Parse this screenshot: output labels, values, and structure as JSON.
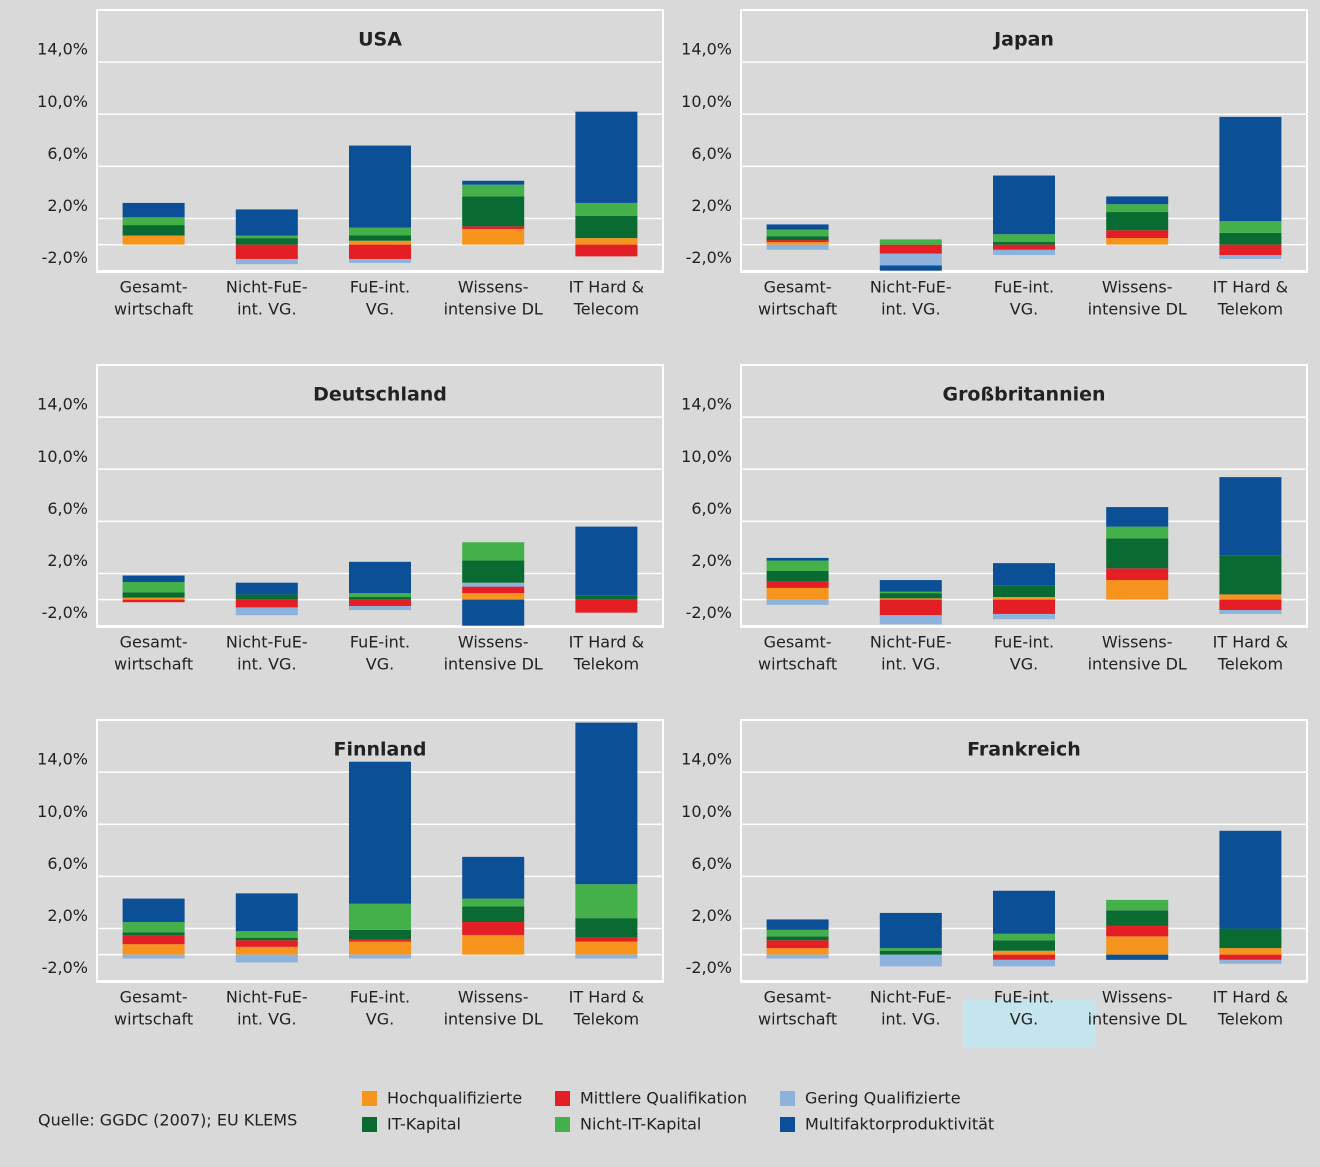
{
  "legend": {
    "series": [
      {
        "name": "Hochqualifizierte",
        "color": "#f7941d"
      },
      {
        "name": "Mittlere Qualifikation",
        "color": "#e31e24"
      },
      {
        "name": "Gering Qualifizierte",
        "color": "#8db3dd"
      },
      {
        "name": "IT-Kapital",
        "color": "#0a6b32"
      },
      {
        "name": "Nicht-IT-Kapital",
        "color": "#43b04a"
      },
      {
        "name": "Multifaktorproduktivität",
        "color": "#0b4f96"
      }
    ]
  },
  "source": "Quelle: GGDC (2007); EU KLEMS",
  "chart_data": [
    {
      "type": "stacked-bar",
      "title": "USA",
      "categories": [
        [
          "Gesamt-",
          "wirtschaft"
        ],
        [
          "Nicht-FuE-",
          "int. VG."
        ],
        [
          "FuE-int.",
          "VG."
        ],
        [
          "Wissens-",
          "intensive DL"
        ],
        [
          "IT Hard &",
          "Telecom"
        ]
      ],
      "series": [
        {
          "values": [
            0.7,
            0,
            0.3,
            1.2,
            0.5
          ]
        },
        {
          "values": [
            0,
            -1.1,
            -1.1,
            0.2,
            -0.9
          ]
        },
        {
          "values": [
            0,
            -0.4,
            -0.3,
            0,
            0
          ]
        },
        {
          "values": [
            0.8,
            0.5,
            0.4,
            2.3,
            1.7
          ]
        },
        {
          "values": [
            0.6,
            0.2,
            0.6,
            0.9,
            1.0
          ]
        },
        {
          "values": [
            1.1,
            2.0,
            6.3,
            0.3,
            7.0
          ]
        }
      ],
      "ylim": [
        -2.1,
        18
      ],
      "yticks": [
        {
          "value": -2,
          "label": "-2,0%"
        },
        {
          "value": 2,
          "label": "2,0%"
        },
        {
          "value": 6,
          "label": "6,0%"
        },
        {
          "value": 10,
          "label": "10,0%"
        },
        {
          "value": 14,
          "label": "14,0%"
        }
      ],
      "grid": true
    },
    {
      "type": "stacked-bar",
      "title": "Japan",
      "categories": [
        [
          "Gesamt-",
          "wirtschaft"
        ],
        [
          "Nicht-FuE-",
          "int. VG."
        ],
        [
          "FuE-int.",
          "VG."
        ],
        [
          "Wissens-",
          "intensive DL"
        ],
        [
          "IT Hard &",
          "Telekom"
        ]
      ],
      "series": [
        {
          "values": [
            0.2,
            0,
            0,
            0.5,
            0
          ]
        },
        {
          "values": [
            0.15,
            -0.7,
            -0.4,
            0.6,
            -0.8
          ]
        },
        {
          "values": [
            -0.4,
            -0.9,
            -0.4,
            0,
            -0.3
          ]
        },
        {
          "values": [
            0.3,
            0,
            0.2,
            1.4,
            0.9
          ]
        },
        {
          "values": [
            0.5,
            0.4,
            0.6,
            0.6,
            0.9
          ]
        },
        {
          "values": [
            0.4,
            -0.4,
            4.5,
            0.6,
            8.0
          ]
        }
      ],
      "ylim": [
        -2.1,
        18
      ],
      "yticks": [
        {
          "value": -2,
          "label": "-2,0%"
        },
        {
          "value": 2,
          "label": "2,0%"
        },
        {
          "value": 6,
          "label": "6,0%"
        },
        {
          "value": 10,
          "label": "10,0%"
        },
        {
          "value": 14,
          "label": "14,0%"
        }
      ],
      "grid": true
    },
    {
      "type": "stacked-bar",
      "title": "Deutschland",
      "categories": [
        [
          "Gesamt-",
          "wirtschaft"
        ],
        [
          "Nicht-FuE-",
          "int. VG."
        ],
        [
          "FuE-int.",
          "VG."
        ],
        [
          "Wissens-",
          "intensive DL"
        ],
        [
          "IT Hard &",
          "Telekom"
        ]
      ],
      "series": [
        {
          "values": [
            0.15,
            0,
            0,
            0.5,
            0
          ]
        },
        {
          "values": [
            -0.2,
            -0.6,
            -0.5,
            0.5,
            -1.0
          ]
        },
        {
          "values": [
            0,
            -0.6,
            -0.3,
            0.3,
            0
          ]
        },
        {
          "values": [
            0.4,
            0.4,
            0.2,
            1.7,
            0.3
          ]
        },
        {
          "values": [
            0.8,
            0,
            0.3,
            1.4,
            0
          ]
        },
        {
          "values": [
            0.5,
            0.9,
            2.4,
            -2.0,
            5.3
          ]
        }
      ],
      "ylim": [
        -2.1,
        18
      ],
      "yticks": [
        {
          "value": -2,
          "label": "-2,0%"
        },
        {
          "value": 2,
          "label": "2,0%"
        },
        {
          "value": 6,
          "label": "6,0%"
        },
        {
          "value": 10,
          "label": "10,0%"
        },
        {
          "value": 14,
          "label": "14,0%"
        }
      ],
      "grid": true
    },
    {
      "type": "stacked-bar",
      "title": "Großbritannien",
      "categories": [
        [
          "Gesamt-",
          "wirtschaft"
        ],
        [
          "Nicht-FuE-",
          "int. VG."
        ],
        [
          "FuE-int.",
          "VG."
        ],
        [
          "Wissens-",
          "intensive DL"
        ],
        [
          "IT Hard &",
          "Telekom"
        ]
      ],
      "series": [
        {
          "values": [
            0.9,
            0.1,
            0.2,
            1.5,
            0.4
          ]
        },
        {
          "values": [
            0.5,
            -1.2,
            -1.1,
            0.9,
            -0.8
          ]
        },
        {
          "values": [
            -0.4,
            -0.7,
            -0.4,
            0,
            -0.3
          ]
        },
        {
          "values": [
            0.8,
            0.4,
            0.9,
            2.3,
            3.0
          ]
        },
        {
          "values": [
            0.8,
            0.1,
            0,
            0.9,
            0
          ]
        },
        {
          "values": [
            0.2,
            0.9,
            1.7,
            1.5,
            6.0
          ]
        }
      ],
      "ylim": [
        -2.1,
        18
      ],
      "yticks": [
        {
          "value": -2,
          "label": "-2,0%"
        },
        {
          "value": 2,
          "label": "2,0%"
        },
        {
          "value": 6,
          "label": "6,0%"
        },
        {
          "value": 10,
          "label": "10,0%"
        },
        {
          "value": 14,
          "label": "14,0%"
        }
      ],
      "grid": true
    },
    {
      "type": "stacked-bar",
      "title": "Finnland",
      "categories": [
        [
          "Gesamt-",
          "wirtschaft"
        ],
        [
          "Nicht-FuE-",
          "int. VG."
        ],
        [
          "FuE-int.",
          "VG."
        ],
        [
          "Wissens-",
          "intensive DL"
        ],
        [
          "IT Hard &",
          "Telekom"
        ]
      ],
      "series": [
        {
          "values": [
            0.8,
            0.6,
            1.0,
            1.5,
            1.0
          ]
        },
        {
          "values": [
            0.7,
            0.5,
            0.2,
            1.0,
            0.3
          ]
        },
        {
          "values": [
            -0.3,
            -0.6,
            -0.3,
            0,
            -0.3
          ]
        },
        {
          "values": [
            0.2,
            0.2,
            0.7,
            1.2,
            1.5
          ]
        },
        {
          "values": [
            0.8,
            0.5,
            2.0,
            0.6,
            2.6
          ]
        },
        {
          "values": [
            1.8,
            2.9,
            10.9,
            3.2,
            12.4
          ]
        }
      ],
      "ylim": [
        -2.1,
        18
      ],
      "yticks": [
        {
          "value": -2,
          "label": "-2,0%"
        },
        {
          "value": 2,
          "label": "2,0%"
        },
        {
          "value": 6,
          "label": "6,0%"
        },
        {
          "value": 10,
          "label": "10,0%"
        },
        {
          "value": 14,
          "label": "14,0%"
        }
      ],
      "grid": true
    },
    {
      "type": "stacked-bar",
      "title": "Frankreich",
      "categories": [
        [
          "Gesamt-",
          "wirtschaft"
        ],
        [
          "Nicht-FuE-",
          "int. VG."
        ],
        [
          "FuE-int.",
          "VG."
        ],
        [
          "Wissens-",
          "intensive DL"
        ],
        [
          "IT Hard &",
          "Telekom"
        ]
      ],
      "series": [
        {
          "values": [
            0.5,
            0,
            0.3,
            1.4,
            0.5
          ]
        },
        {
          "values": [
            0.6,
            0,
            -0.4,
            0.8,
            -0.4
          ]
        },
        {
          "values": [
            -0.3,
            -0.9,
            -0.5,
            0,
            -0.3
          ]
        },
        {
          "values": [
            0.3,
            0.3,
            0.8,
            1.2,
            1.5
          ]
        },
        {
          "values": [
            0.5,
            0.2,
            0.5,
            0.8,
            0
          ]
        },
        {
          "values": [
            0.8,
            2.7,
            3.3,
            -0.4,
            7.5
          ]
        }
      ],
      "ylim": [
        -2.1,
        18
      ],
      "yticks": [
        {
          "value": -2,
          "label": "-2,0%"
        },
        {
          "value": 2,
          "label": "2,0%"
        },
        {
          "value": 6,
          "label": "6,0%"
        },
        {
          "value": 10,
          "label": "10,0%"
        },
        {
          "value": 14,
          "label": "14,0%"
        }
      ],
      "grid": true
    }
  ]
}
